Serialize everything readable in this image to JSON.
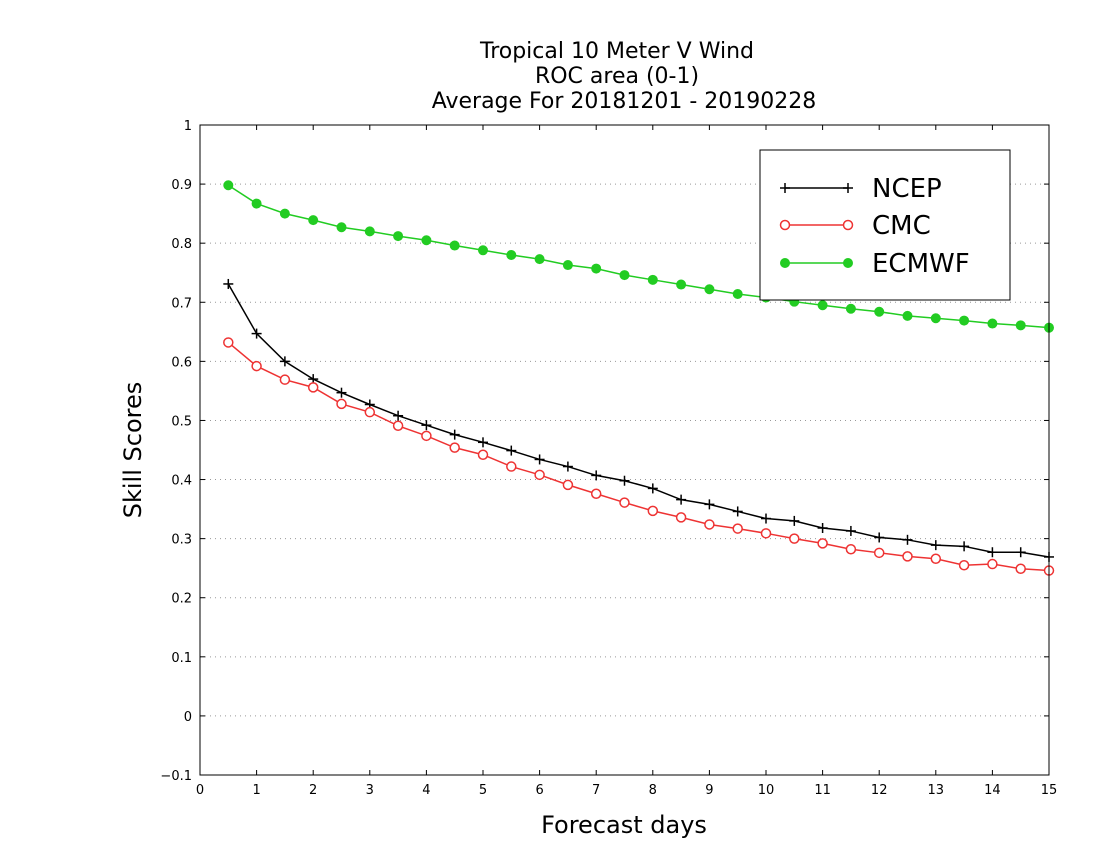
{
  "chart_data": {
    "type": "line",
    "title_lines": [
      "Tropical 10 Meter V Wind",
      "ROC area (0-1)",
      "Average For 20181201 - 20190228"
    ],
    "xlabel": "Forecast days",
    "ylabel": "Skill Scores",
    "xlim": [
      0,
      15
    ],
    "ylim": [
      -0.1,
      1
    ],
    "xticks": [
      "0",
      "1",
      "2",
      "3",
      "4",
      "5",
      "6",
      "7",
      "8",
      "9",
      "10",
      "11",
      "12",
      "13",
      "14",
      "15"
    ],
    "yticks": [
      "−0.1",
      "0",
      "0.1",
      "0.2",
      "0.3",
      "0.4",
      "0.5",
      "0.6",
      "0.7",
      "0.8",
      "0.9",
      "1"
    ],
    "grid": "horizontal-dotted",
    "legend_position": "top-right",
    "x": [
      0.5,
      1,
      1.5,
      2,
      2.5,
      3,
      3.5,
      4,
      4.5,
      5,
      5.5,
      6,
      6.5,
      7,
      7.5,
      8,
      8.5,
      9,
      9.5,
      10,
      10.5,
      11,
      11.5,
      12,
      12.5,
      13,
      13.5,
      14,
      14.5,
      15
    ],
    "series": [
      {
        "name": "NCEP",
        "color": "#000000",
        "marker": "plus",
        "values": [
          0.731,
          0.647,
          0.6,
          0.57,
          0.547,
          0.527,
          0.508,
          0.492,
          0.476,
          0.463,
          0.449,
          0.434,
          0.422,
          0.407,
          0.398,
          0.385,
          0.366,
          0.358,
          0.346,
          0.334,
          0.33,
          0.318,
          0.313,
          0.302,
          0.298,
          0.289,
          0.287,
          0.277,
          0.277,
          0.269
        ]
      },
      {
        "name": "CMC",
        "color": "#ee3333",
        "marker": "open-circle",
        "values": [
          0.632,
          0.592,
          0.569,
          0.556,
          0.528,
          0.514,
          0.491,
          0.474,
          0.454,
          0.442,
          0.422,
          0.408,
          0.391,
          0.376,
          0.361,
          0.347,
          0.336,
          0.324,
          0.317,
          0.309,
          0.3,
          0.292,
          0.282,
          0.276,
          0.27,
          0.266,
          0.255,
          0.257,
          0.249,
          0.246
        ]
      },
      {
        "name": "ECMWF",
        "color": "#22cc22",
        "marker": "filled-circle",
        "values": [
          0.898,
          0.867,
          0.85,
          0.839,
          0.827,
          0.82,
          0.812,
          0.805,
          0.796,
          0.788,
          0.78,
          0.773,
          0.763,
          0.757,
          0.746,
          0.738,
          0.73,
          0.722,
          0.714,
          0.708,
          0.701,
          0.695,
          0.689,
          0.684,
          0.677,
          0.673,
          0.669,
          0.664,
          0.661,
          0.657
        ]
      }
    ]
  }
}
